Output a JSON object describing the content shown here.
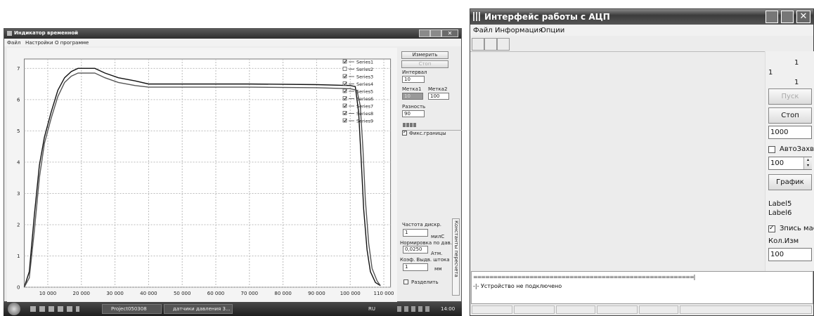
{
  "left_window": {
    "title": "Индикатор временной",
    "menu": [
      "Файл",
      "Настройки",
      "О программе"
    ],
    "chart": {
      "type": "line",
      "xlim": [
        3000,
        112000
      ],
      "ylim": [
        0,
        7.3
      ],
      "xticks": [
        {
          "value": 10000,
          "label": "10 000"
        },
        {
          "value": 20000,
          "label": "20 000"
        },
        {
          "value": 30000,
          "label": "30 000"
        },
        {
          "value": 40000,
          "label": "40 000"
        },
        {
          "value": 50000,
          "label": "50 000"
        },
        {
          "value": 60000,
          "label": "60 000"
        },
        {
          "value": 70000,
          "label": "70 000"
        },
        {
          "value": 80000,
          "label": "80 000"
        },
        {
          "value": 90000,
          "label": "90 000"
        },
        {
          "value": 100000,
          "label": "100 000"
        },
        {
          "value": 110000,
          "label": "110 000"
        }
      ],
      "yticks": [
        0,
        1,
        2,
        3,
        4,
        5,
        6,
        7
      ],
      "grid": true,
      "series": [
        {
          "color": "#111111",
          "x": [
            3000,
            4500,
            6000,
            7500,
            9000,
            11000,
            13000,
            15000,
            17000,
            19000,
            22000,
            24000,
            27000,
            31000,
            36000,
            40000,
            50000,
            70000,
            90000,
            100000,
            101500,
            102500,
            103300,
            104000,
            105000,
            106000,
            107500,
            109000
          ],
          "values": [
            0,
            0.5,
            2.3,
            3.9,
            4.8,
            5.6,
            6.3,
            6.7,
            6.9,
            7.0,
            7.0,
            7.0,
            6.85,
            6.7,
            6.6,
            6.5,
            6.5,
            6.5,
            6.48,
            6.45,
            6.42,
            5.6,
            4.0,
            2.5,
            1.2,
            0.5,
            0.15,
            0.05
          ]
        },
        {
          "color": "#555555",
          "x": [
            3000,
            4500,
            6000,
            7500,
            9000,
            11000,
            13000,
            15000,
            17000,
            19000,
            22000,
            24000,
            27000,
            31000,
            36000,
            40000,
            50000,
            70000,
            90000,
            100000,
            102000,
            103000,
            103800,
            104500,
            105500,
            106500,
            108000,
            109000
          ],
          "values": [
            0,
            0.3,
            1.8,
            3.5,
            4.6,
            5.4,
            6.1,
            6.55,
            6.75,
            6.85,
            6.85,
            6.85,
            6.7,
            6.55,
            6.45,
            6.4,
            6.4,
            6.4,
            6.38,
            6.35,
            6.3,
            5.8,
            4.4,
            2.8,
            1.4,
            0.6,
            0.2,
            0.05
          ]
        }
      ],
      "legend": [
        {
          "name": "Series1",
          "checked": true
        },
        {
          "name": "Series2",
          "checked": false
        },
        {
          "name": "Series3",
          "checked": true
        },
        {
          "name": "Series4",
          "checked": true
        },
        {
          "name": "Series5",
          "checked": true
        },
        {
          "name": "Series6",
          "checked": true
        },
        {
          "name": "Series7",
          "checked": true
        },
        {
          "name": "Series8",
          "checked": true
        },
        {
          "name": "Series9",
          "checked": true
        }
      ]
    },
    "panel": {
      "measure_button": "Измерить",
      "stop_button": "Стоп",
      "interval_label": "Интервал",
      "interval_value": "10",
      "mark1_label": "Метка1",
      "mark2_label": "Метка2",
      "mark1_value": "10",
      "mark2_value": "100",
      "diff_label": "Разность",
      "diff_value": "90",
      "fix_bounds": {
        "label": "Фикс.границы",
        "checked": true
      },
      "freq_label": "Частота дискр.",
      "freq_value": "1",
      "freq_unit": "милС",
      "norm_label": "Нормировка по дав.",
      "norm_value": "0,0250",
      "norm_unit": "Атм.",
      "coef_label": "Коэф. Выдв. штока",
      "coef_value": "1",
      "coef_unit": "мм",
      "split": {
        "label": "Разделить",
        "checked": false
      },
      "tab": "Константы пересчета"
    },
    "taskbar": {
      "items": [
        "Project050308",
        "датчики давления 3..."
      ],
      "lang": "RU",
      "clock": "14:00"
    }
  },
  "right_window": {
    "title": "Интерфейс работы с АЦП",
    "menu": [
      "Файл",
      "Информация",
      "Опции"
    ],
    "panel": {
      "label_a": "1",
      "label_b": "1",
      "label_c": "1",
      "start_button": "Пуск",
      "stop_button": "Стоп",
      "count_value": "1000",
      "auto": {
        "label": "АвтоЗахв",
        "checked": false
      },
      "spin_value": "100",
      "graph_button": "График",
      "label5": "Label5",
      "label6": "Label6",
      "write": {
        "label": "Зпись мас",
        "checked": true
      },
      "num_label": "Кол.Изм",
      "num_value": "100"
    },
    "memo": [
      "=======================================================|",
      "-|- Устройство не подключено"
    ]
  }
}
